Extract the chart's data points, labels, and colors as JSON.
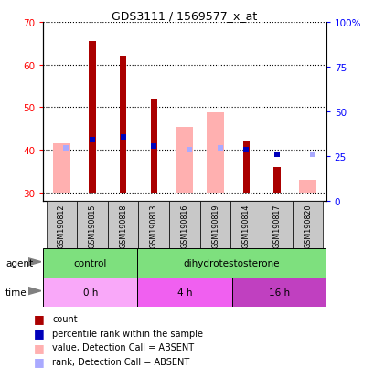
{
  "title": "GDS3111 / 1569577_x_at",
  "samples": [
    "GSM190812",
    "GSM190815",
    "GSM190818",
    "GSM190813",
    "GSM190816",
    "GSM190819",
    "GSM190814",
    "GSM190817",
    "GSM190820"
  ],
  "ylim_left": [
    28,
    70
  ],
  "ylim_right": [
    0,
    100
  ],
  "yticks_left": [
    30,
    40,
    50,
    60,
    70
  ],
  "yticks_right": [
    0,
    25,
    50,
    75,
    100
  ],
  "ytick_labels_right": [
    "0",
    "25",
    "50",
    "75",
    "100%"
  ],
  "count_values": [
    null,
    65.5,
    62.0,
    52.0,
    null,
    null,
    42.0,
    36.0,
    null
  ],
  "count_base": 30,
  "percentile_rank": [
    null,
    42.5,
    43.0,
    41.0,
    null,
    null,
    40.0,
    39.0,
    null
  ],
  "value_absent": [
    41.5,
    null,
    null,
    null,
    45.5,
    48.8,
    null,
    null,
    33.0
  ],
  "value_absent_base": 30,
  "rank_absent": [
    40.5,
    null,
    null,
    null,
    40.0,
    40.5,
    null,
    null,
    39.0
  ],
  "agent_groups": [
    {
      "label": "control",
      "start": 0,
      "end": 3,
      "color": "#7EE07E"
    },
    {
      "label": "dihydrotestosterone",
      "start": 3,
      "end": 9,
      "color": "#7EE07E"
    }
  ],
  "time_groups": [
    {
      "label": "0 h",
      "start": 0,
      "end": 3,
      "color": "#F9A8F9"
    },
    {
      "label": "4 h",
      "start": 3,
      "end": 6,
      "color": "#F060F0"
    },
    {
      "label": "16 h",
      "start": 6,
      "end": 9,
      "color": "#C040C0"
    }
  ],
  "color_count": "#AA0000",
  "color_percentile": "#0000BB",
  "color_value_absent": "#FFB0B0",
  "color_rank_absent": "#AAAAFF",
  "bg_color": "#FFFFFF"
}
